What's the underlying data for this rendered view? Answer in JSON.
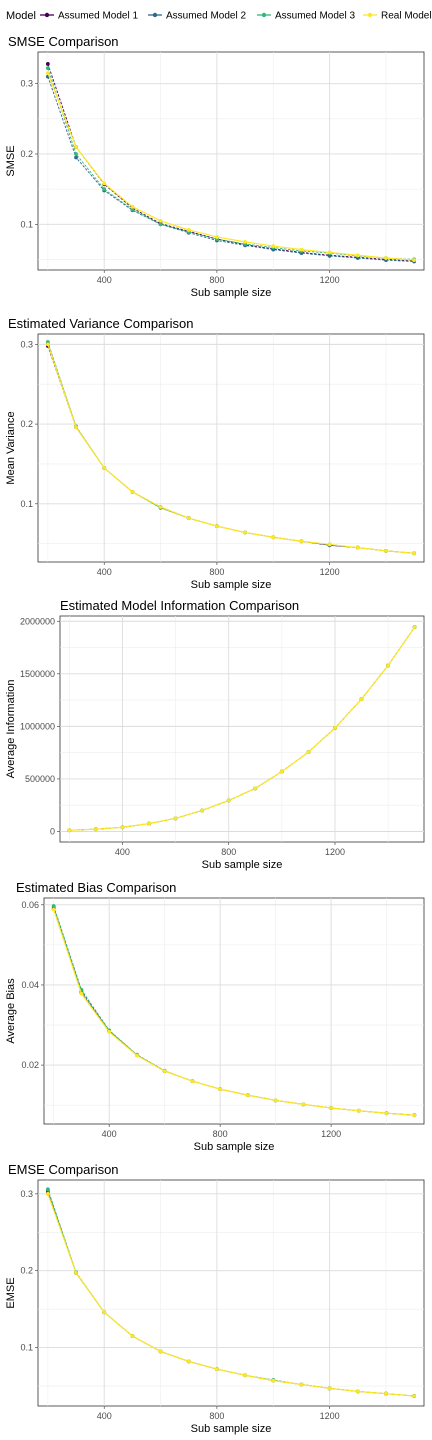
{
  "legend": {
    "title": "Model",
    "items": [
      {
        "name": "Assumed Model 1",
        "color": "#440154"
      },
      {
        "name": "Assumed Model 2",
        "color": "#31688e"
      },
      {
        "name": "Assumed Model 3",
        "color": "#35b779"
      },
      {
        "name": "Real Model",
        "color": "#fde725"
      }
    ]
  },
  "chart_data": [
    {
      "type": "line",
      "title": "SMSE Comparison",
      "xlabel": "Sub sample size",
      "ylabel": "SMSE",
      "x": [
        200,
        300,
        400,
        500,
        600,
        700,
        800,
        900,
        1000,
        1100,
        1200,
        1300,
        1400,
        1500
      ],
      "xlim": [
        165,
        1535
      ],
      "ylim": [
        0.035,
        0.345
      ],
      "xticks": [
        400,
        800,
        1200
      ],
      "yticks": [
        0.1,
        0.2,
        0.3
      ],
      "ytick_labels": [
        "0.1",
        "0.2",
        "0.3"
      ],
      "grid": true,
      "series": [
        {
          "name": "Assumed Model 1",
          "color": "#440154",
          "values": [
            0.328,
            0.21,
            0.157,
            0.123,
            0.101,
            0.09,
            0.079,
            0.071,
            0.065,
            0.06,
            0.056,
            0.053,
            0.05,
            0.048
          ]
        },
        {
          "name": "Assumed Model 2",
          "color": "#31688e",
          "values": [
            0.31,
            0.195,
            0.148,
            0.12,
            0.1,
            0.088,
            0.077,
            0.07,
            0.064,
            0.059,
            0.055,
            0.052,
            0.049,
            0.047
          ]
        },
        {
          "name": "Assumed Model 3",
          "color": "#35b779",
          "values": [
            0.322,
            0.2,
            0.15,
            0.121,
            0.1,
            0.089,
            0.079,
            0.072,
            0.067,
            0.062,
            0.059,
            0.055,
            0.052,
            0.05
          ]
        },
        {
          "name": "Real Model",
          "color": "#fde725",
          "values": [
            0.315,
            0.21,
            0.158,
            0.125,
            0.105,
            0.092,
            0.082,
            0.075,
            0.069,
            0.064,
            0.06,
            0.056,
            0.052,
            0.049
          ]
        }
      ]
    },
    {
      "type": "line",
      "title": "Estimated Variance Comparison",
      "xlabel": "Sub sample size",
      "ylabel": "Mean Variance",
      "x": [
        200,
        300,
        400,
        500,
        600,
        700,
        800,
        900,
        1000,
        1100,
        1200,
        1300,
        1400,
        1500
      ],
      "xlim": [
        165,
        1535
      ],
      "ylim": [
        0.027,
        0.313
      ],
      "xticks": [
        400,
        800,
        1200
      ],
      "yticks": [
        0.1,
        0.2,
        0.3
      ],
      "ytick_labels": [
        "0.1",
        "0.2",
        "0.3"
      ],
      "grid": true,
      "series": [
        {
          "name": "Assumed Model 1",
          "color": "#440154",
          "values": [
            0.298,
            0.196,
            0.145,
            0.115,
            0.096,
            0.082,
            0.072,
            0.064,
            0.058,
            0.053,
            0.048,
            0.045,
            0.041,
            0.038
          ]
        },
        {
          "name": "Assumed Model 2",
          "color": "#31688e",
          "values": [
            0.301,
            0.197,
            0.145,
            0.115,
            0.095,
            0.082,
            0.072,
            0.064,
            0.058,
            0.053,
            0.048,
            0.045,
            0.041,
            0.038
          ]
        },
        {
          "name": "Assumed Model 3",
          "color": "#35b779",
          "values": [
            0.303,
            0.197,
            0.145,
            0.115,
            0.095,
            0.082,
            0.072,
            0.064,
            0.058,
            0.053,
            0.049,
            0.045,
            0.041,
            0.038
          ]
        },
        {
          "name": "Real Model",
          "color": "#fde725",
          "values": [
            0.3,
            0.196,
            0.145,
            0.115,
            0.096,
            0.082,
            0.072,
            0.064,
            0.058,
            0.053,
            0.049,
            0.045,
            0.041,
            0.038
          ]
        }
      ]
    },
    {
      "type": "line",
      "title": "Estimated Model Information Comparison",
      "xlabel": "Sub sample size",
      "ylabel": "Average Information",
      "x": [
        200,
        300,
        400,
        500,
        600,
        700,
        800,
        900,
        1000,
        1100,
        1200,
        1300,
        1400,
        1500
      ],
      "xlim": [
        165,
        1535
      ],
      "ylim": [
        -100000,
        2050000
      ],
      "xticks": [
        400,
        800,
        1200
      ],
      "yticks": [
        0,
        500000,
        1000000,
        1500000,
        2000000
      ],
      "ytick_labels": [
        "0",
        "500000",
        "1000000",
        "1500000",
        "2000000"
      ],
      "grid": true,
      "series": [
        {
          "name": "Assumed Model 1",
          "color": "#440154",
          "values": [
            12000,
            22000,
            40000,
            75000,
            125000,
            200000,
            295000,
            410000,
            570000,
            755000,
            985000,
            1260000,
            1580000,
            1945000
          ]
        },
        {
          "name": "Assumed Model 2",
          "color": "#31688e",
          "values": [
            12000,
            22000,
            40000,
            75000,
            125000,
            200000,
            295000,
            410000,
            570000,
            755000,
            985000,
            1260000,
            1580000,
            1945000
          ]
        },
        {
          "name": "Assumed Model 3",
          "color": "#35b779",
          "values": [
            12000,
            22000,
            40000,
            75000,
            125000,
            200000,
            295000,
            410000,
            570000,
            755000,
            985000,
            1260000,
            1580000,
            1945000
          ]
        },
        {
          "name": "Real Model",
          "color": "#fde725",
          "values": [
            12000,
            22000,
            40000,
            75000,
            125000,
            200000,
            295000,
            410000,
            570000,
            755000,
            985000,
            1260000,
            1580000,
            1945000
          ]
        }
      ]
    },
    {
      "type": "line",
      "title": "Estimated Bias Comparison",
      "xlabel": "Sub sample size",
      "ylabel": "Average Bias",
      "x": [
        200,
        300,
        400,
        500,
        600,
        700,
        800,
        900,
        1000,
        1100,
        1200,
        1300,
        1400,
        1500
      ],
      "xlim": [
        165,
        1535
      ],
      "ylim": [
        0.0053,
        0.0617
      ],
      "xticks": [
        400,
        800,
        1200
      ],
      "yticks": [
        0.02,
        0.04,
        0.06
      ],
      "ytick_labels": [
        "0.02",
        "0.04",
        "0.06"
      ],
      "grid": true,
      "series": [
        {
          "name": "Assumed Model 1",
          "color": "#440154",
          "values": [
            0.059,
            0.038,
            0.0285,
            0.0225,
            0.0185,
            0.016,
            0.014,
            0.0125,
            0.0112,
            0.0102,
            0.0093,
            0.0086,
            0.008,
            0.0075
          ]
        },
        {
          "name": "Assumed Model 2",
          "color": "#31688e",
          "values": [
            0.0595,
            0.0385,
            0.0285,
            0.0225,
            0.0185,
            0.016,
            0.014,
            0.0125,
            0.0112,
            0.0102,
            0.0093,
            0.0086,
            0.008,
            0.0075
          ]
        },
        {
          "name": "Assumed Model 3",
          "color": "#35b779",
          "values": [
            0.0597,
            0.0388,
            0.0287,
            0.0226,
            0.0186,
            0.016,
            0.014,
            0.0125,
            0.0112,
            0.0102,
            0.0093,
            0.0086,
            0.008,
            0.0075
          ]
        },
        {
          "name": "Real Model",
          "color": "#fde725",
          "values": [
            0.0588,
            0.0378,
            0.0283,
            0.0224,
            0.0185,
            0.016,
            0.014,
            0.0125,
            0.0112,
            0.0102,
            0.0093,
            0.0086,
            0.008,
            0.0075
          ]
        }
      ]
    },
    {
      "type": "line",
      "title": "EMSE Comparison",
      "xlabel": "Sub sample size",
      "ylabel": "EMSE",
      "x": [
        200,
        300,
        400,
        500,
        600,
        700,
        800,
        900,
        1000,
        1100,
        1200,
        1300,
        1400,
        1500
      ],
      "xlim": [
        165,
        1535
      ],
      "ylim": [
        0.024,
        0.318
      ],
      "xticks": [
        400,
        800,
        1200
      ],
      "yticks": [
        0.1,
        0.2,
        0.3
      ],
      "ytick_labels": [
        "0.1",
        "0.2",
        "0.3"
      ],
      "grid": true,
      "series": [
        {
          "name": "Assumed Model 1",
          "color": "#440154",
          "values": [
            0.302,
            0.197,
            0.146,
            0.115,
            0.095,
            0.082,
            0.072,
            0.064,
            0.057,
            0.052,
            0.047,
            0.043,
            0.04,
            0.037
          ]
        },
        {
          "name": "Assumed Model 2",
          "color": "#31688e",
          "values": [
            0.305,
            0.197,
            0.146,
            0.115,
            0.095,
            0.082,
            0.072,
            0.064,
            0.057,
            0.052,
            0.047,
            0.043,
            0.04,
            0.037
          ]
        },
        {
          "name": "Assumed Model 3",
          "color": "#35b779",
          "values": [
            0.306,
            0.198,
            0.146,
            0.115,
            0.095,
            0.082,
            0.072,
            0.064,
            0.058,
            0.052,
            0.047,
            0.043,
            0.04,
            0.037
          ]
        },
        {
          "name": "Real Model",
          "color": "#fde725",
          "values": [
            0.3,
            0.197,
            0.146,
            0.115,
            0.095,
            0.082,
            0.072,
            0.064,
            0.057,
            0.052,
            0.047,
            0.043,
            0.04,
            0.037
          ]
        }
      ]
    }
  ]
}
